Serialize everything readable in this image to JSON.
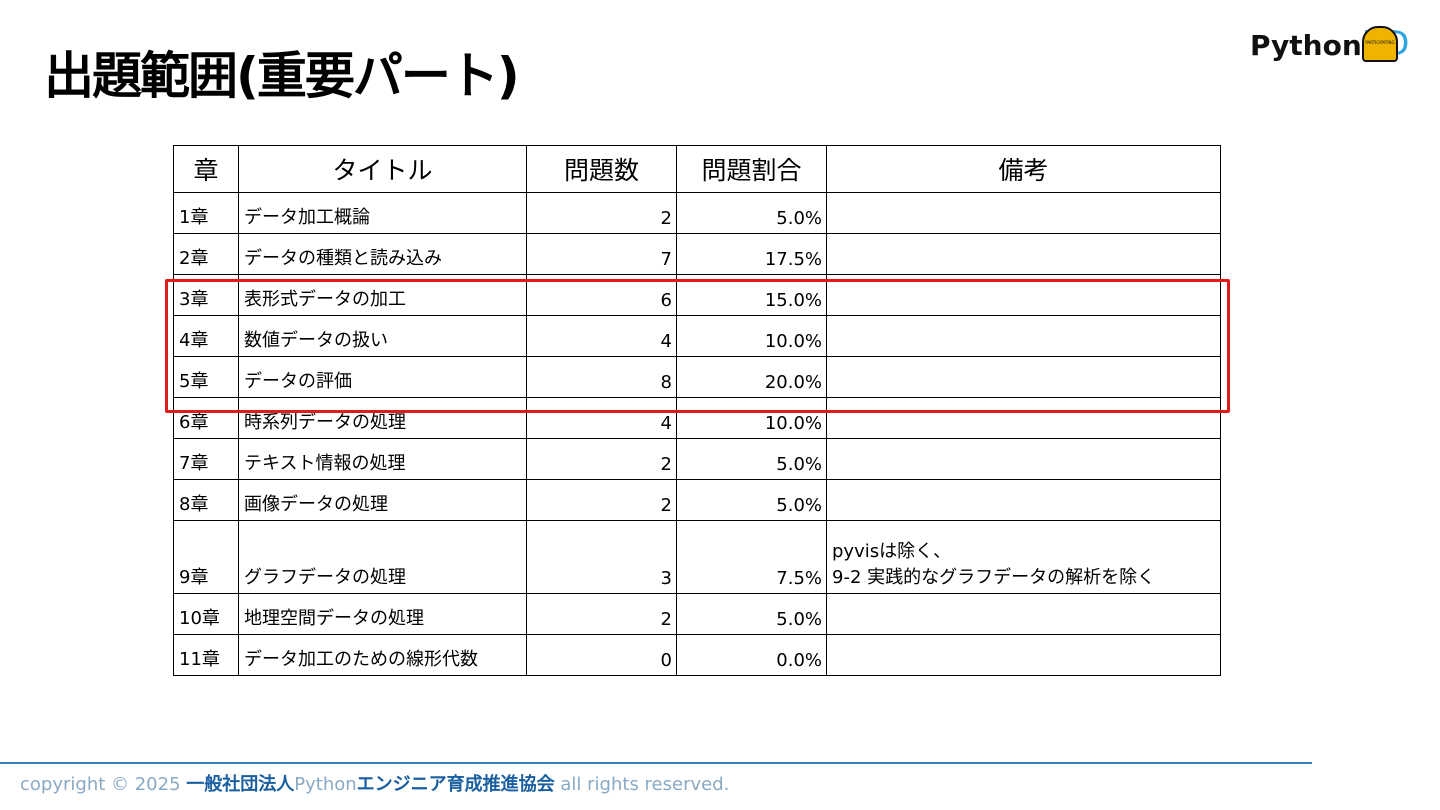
{
  "header": {
    "title": "出題範囲(重要パート)",
    "logo": {
      "python": "Python",
      "ed": "ED",
      "badge": "PARTICIPATING"
    }
  },
  "table": {
    "columns": [
      "章",
      "タイトル",
      "問題数",
      "問題割合",
      "備考"
    ],
    "rows": [
      {
        "chapter": "1章",
        "title": "データ加工概論",
        "count": 2,
        "ratio": "5.0%"
      },
      {
        "chapter": "2章",
        "title": "データの種類と読み込み",
        "count": 7,
        "ratio": "17.5%"
      },
      {
        "chapter": "3章",
        "title": "表形式データの加工",
        "count": 6,
        "ratio": "15.0%"
      },
      {
        "chapter": "4章",
        "title": "数値データの扱い",
        "count": 4,
        "ratio": "10.0%"
      },
      {
        "chapter": "5章",
        "title": "データの評価",
        "count": 8,
        "ratio": "20.0%"
      },
      {
        "chapter": "6章",
        "title": "時系列データの処理",
        "count": 4,
        "ratio": "10.0%"
      },
      {
        "chapter": "7章",
        "title": "テキスト情報の処理",
        "count": 2,
        "ratio": "5.0%"
      },
      {
        "chapter": "8章",
        "title": "画像データの処理",
        "count": 2,
        "ratio": "5.0%"
      },
      {
        "chapter": "9章",
        "title": "グラフデータの処理",
        "count": 3,
        "ratio": "7.5%",
        "note": [
          "pyvisは除く、",
          "9-2 実践的なグラフデータの解析を除く"
        ]
      },
      {
        "chapter": "10章",
        "title": "地理空間データの処理",
        "count": 2,
        "ratio": "5.0%"
      },
      {
        "chapter": "11章",
        "title": "データ加工のための線形代数",
        "count": 0,
        "ratio": "0.0%"
      }
    ]
  },
  "footer": {
    "prefix": "copyright © 2025 ",
    "org": "一般社団法人",
    "python": "Python",
    "assoc": "エンジニア育成推進協会",
    "suffix": " all rights reserved."
  }
}
